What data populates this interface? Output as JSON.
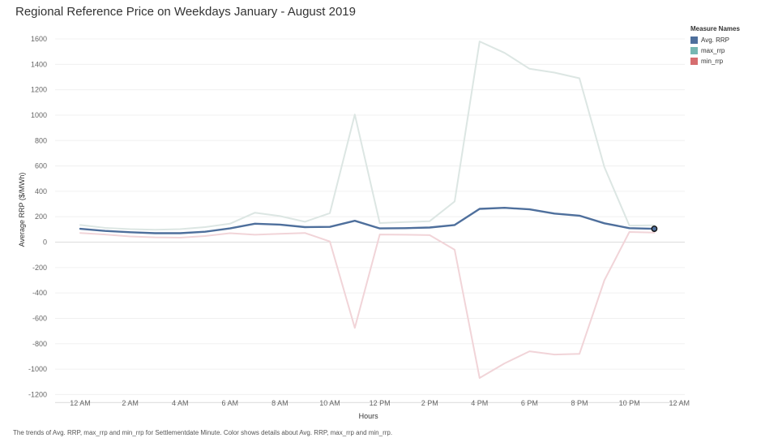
{
  "title": "Regional Reference Price on Weekdays January - August 2019",
  "caption": "The trends of Avg. RRP, max_rrp and min_rrp for Settlementdate Minute.  Color shows details about Avg. RRP, max_rrp and min_rrp.",
  "legend": {
    "title": "Measure Names",
    "items": [
      {
        "label": "Avg. RRP",
        "color": "#4e6f9c"
      },
      {
        "label": "max_rrp",
        "color": "#76b7b2"
      },
      {
        "label": "min_rrp",
        "color": "#d66d6f"
      }
    ]
  },
  "chart_data": {
    "type": "line",
    "xlabel": "Hours",
    "ylabel": "Average RRP ($/MWh)",
    "ylim": [
      -1250,
      1650
    ],
    "y_ticks": [
      -1200,
      -1000,
      -800,
      -600,
      -400,
      -200,
      0,
      200,
      400,
      600,
      800,
      1000,
      1200,
      1400,
      1600
    ],
    "x_ticks": [
      "12 AM",
      "2 AM",
      "4 AM",
      "6 AM",
      "8 AM",
      "10 AM",
      "12 PM",
      "2 PM",
      "4 PM",
      "6 PM",
      "8 PM",
      "10 PM",
      "12 AM"
    ],
    "x_hours": [
      0,
      1,
      2,
      3,
      4,
      5,
      6,
      7,
      8,
      9,
      10,
      11,
      12,
      13,
      14,
      15,
      16,
      17,
      18,
      19,
      20,
      21,
      22,
      23
    ],
    "grid": true,
    "series": [
      {
        "name": "max_rrp",
        "color": "#dce6e3",
        "values": [
          135,
          112,
          102,
          98,
          102,
          118,
          145,
          232,
          205,
          160,
          228,
          1005,
          150,
          158,
          165,
          320,
          1580,
          1490,
          1365,
          1335,
          1290,
          590,
          130,
          133
        ]
      },
      {
        "name": "min_rrp",
        "color": "#f1d4d8",
        "values": [
          72,
          60,
          45,
          38,
          35,
          48,
          70,
          58,
          65,
          72,
          5,
          -675,
          60,
          58,
          55,
          -60,
          -1070,
          -955,
          -860,
          -885,
          -880,
          -300,
          80,
          75
        ]
      },
      {
        "name": "Avg. RRP",
        "color": "#4e6f9c",
        "values": [
          105,
          88,
          78,
          70,
          70,
          82,
          108,
          145,
          138,
          118,
          120,
          168,
          108,
          110,
          115,
          135,
          262,
          270,
          258,
          225,
          208,
          148,
          110,
          105
        ]
      }
    ],
    "highlight": {
      "series": "Avg. RRP",
      "x": 23
    }
  }
}
